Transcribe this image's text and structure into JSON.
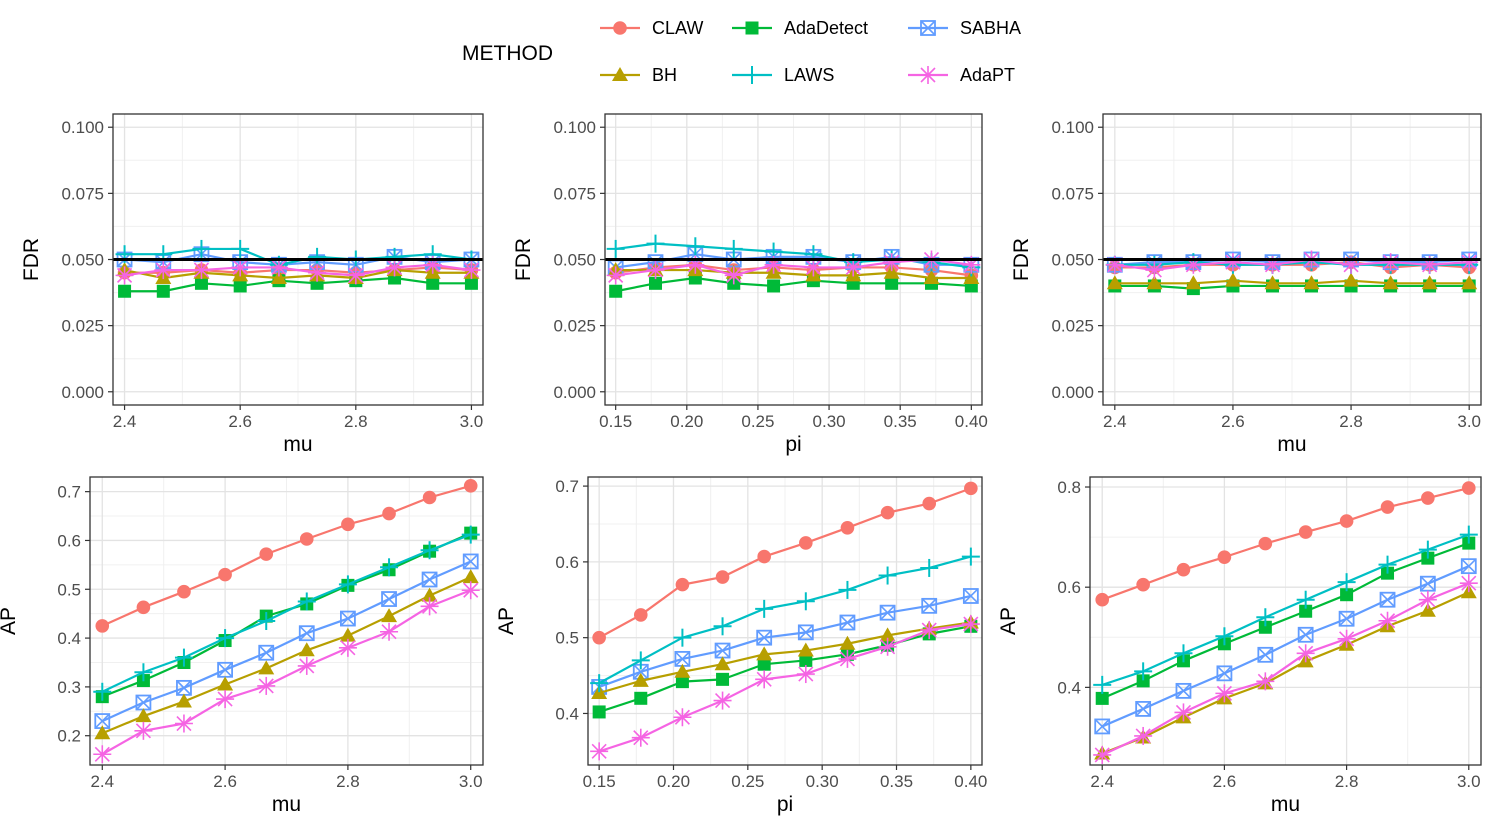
{
  "legend": {
    "title": "METHOD",
    "placement": "top",
    "entries": [
      {
        "name": "CLAW",
        "color": "#F8766D",
        "shape": "circle"
      },
      {
        "name": "AdaDetect",
        "color": "#00BA38",
        "shape": "square"
      },
      {
        "name": "SABHA",
        "color": "#619CFF",
        "shape": "boxx"
      },
      {
        "name": "BH",
        "color": "#B79F00",
        "shape": "triangle"
      },
      {
        "name": "LAWS",
        "color": "#00BFC4",
        "shape": "plus"
      },
      {
        "name": "AdaPT",
        "color": "#F564E3",
        "shape": "asterisk"
      }
    ]
  },
  "chart_data": [
    {
      "type": "line",
      "panel": "top-left",
      "xlabel": "mu",
      "ylabel": "FDR",
      "xlim": [
        2.38,
        3.02
      ],
      "ylim": [
        -0.005,
        0.105
      ],
      "xticks": [
        "2.4",
        "2.6",
        "2.8",
        "3.0"
      ],
      "yticks": [
        "0.000",
        "0.025",
        "0.050",
        "0.075",
        "0.100"
      ],
      "hline": 0.05,
      "x": [
        2.4,
        2.467,
        2.533,
        2.6,
        2.667,
        2.733,
        2.8,
        2.867,
        2.933,
        3.0
      ],
      "series": [
        {
          "name": "CLAW",
          "values": [
            0.045,
            0.045,
            0.046,
            0.045,
            0.046,
            0.046,
            0.045,
            0.046,
            0.047,
            0.046
          ]
        },
        {
          "name": "AdaDetect",
          "values": [
            0.038,
            0.038,
            0.041,
            0.04,
            0.042,
            0.041,
            0.042,
            0.043,
            0.041,
            0.041
          ]
        },
        {
          "name": "SABHA",
          "values": [
            0.05,
            0.049,
            0.052,
            0.049,
            0.048,
            0.049,
            0.048,
            0.051,
            0.049,
            0.05
          ]
        },
        {
          "name": "BH",
          "values": [
            0.046,
            0.043,
            0.045,
            0.044,
            0.043,
            0.044,
            0.043,
            0.046,
            0.045,
            0.045
          ]
        },
        {
          "name": "LAWS",
          "values": [
            0.052,
            0.052,
            0.054,
            0.054,
            0.048,
            0.051,
            0.05,
            0.051,
            0.052,
            0.05
          ]
        },
        {
          "name": "AdaPT",
          "values": [
            0.044,
            0.046,
            0.046,
            0.047,
            0.047,
            0.045,
            0.044,
            0.047,
            0.048,
            0.046
          ]
        }
      ]
    },
    {
      "type": "line",
      "panel": "top-middle",
      "xlabel": "pi",
      "ylabel": "FDR",
      "xlim": [
        0.1425,
        0.4075
      ],
      "ylim": [
        -0.005,
        0.105
      ],
      "xticks": [
        "0.15",
        "0.20",
        "0.25",
        "0.30",
        "0.35",
        "0.40"
      ],
      "yticks": [
        "0.000",
        "0.025",
        "0.050",
        "0.075",
        "0.100"
      ],
      "hline": 0.05,
      "x": [
        0.15,
        0.178,
        0.206,
        0.233,
        0.261,
        0.289,
        0.317,
        0.344,
        0.372,
        0.4
      ],
      "series": [
        {
          "name": "CLAW",
          "values": [
            0.045,
            0.047,
            0.048,
            0.046,
            0.047,
            0.046,
            0.047,
            0.047,
            0.046,
            0.044
          ]
        },
        {
          "name": "AdaDetect",
          "values": [
            0.038,
            0.041,
            0.043,
            0.041,
            0.04,
            0.042,
            0.041,
            0.041,
            0.041,
            0.04
          ]
        },
        {
          "name": "SABHA",
          "values": [
            0.047,
            0.049,
            0.052,
            0.05,
            0.051,
            0.051,
            0.049,
            0.051,
            0.048,
            0.048
          ]
        },
        {
          "name": "BH",
          "values": [
            0.046,
            0.046,
            0.046,
            0.045,
            0.045,
            0.044,
            0.044,
            0.045,
            0.043,
            0.043
          ]
        },
        {
          "name": "LAWS",
          "values": [
            0.054,
            0.056,
            0.055,
            0.054,
            0.053,
            0.052,
            0.049,
            0.05,
            0.049,
            0.047
          ]
        },
        {
          "name": "AdaPT",
          "values": [
            0.044,
            0.046,
            0.048,
            0.044,
            0.048,
            0.047,
            0.047,
            0.049,
            0.05,
            0.048
          ]
        }
      ]
    },
    {
      "type": "line",
      "panel": "top-right",
      "xlabel": "mu",
      "ylabel": "FDR",
      "xlim": [
        2.38,
        3.02
      ],
      "ylim": [
        -0.005,
        0.105
      ],
      "xticks": [
        "2.4",
        "2.6",
        "2.8",
        "3.0"
      ],
      "yticks": [
        "0.000",
        "0.025",
        "0.050",
        "0.075",
        "0.100"
      ],
      "hline": 0.05,
      "x": [
        2.4,
        2.467,
        2.533,
        2.6,
        2.667,
        2.733,
        2.8,
        2.867,
        2.933,
        3.0
      ],
      "series": [
        {
          "name": "CLAW",
          "values": [
            0.047,
            0.047,
            0.048,
            0.048,
            0.048,
            0.048,
            0.049,
            0.047,
            0.048,
            0.047
          ]
        },
        {
          "name": "AdaDetect",
          "values": [
            0.04,
            0.04,
            0.039,
            0.04,
            0.04,
            0.04,
            0.04,
            0.04,
            0.04,
            0.04
          ]
        },
        {
          "name": "SABHA",
          "values": [
            0.048,
            0.049,
            0.049,
            0.05,
            0.049,
            0.05,
            0.05,
            0.049,
            0.049,
            0.05
          ]
        },
        {
          "name": "BH",
          "values": [
            0.041,
            0.041,
            0.041,
            0.042,
            0.041,
            0.041,
            0.042,
            0.041,
            0.041,
            0.041
          ]
        },
        {
          "name": "LAWS",
          "values": [
            0.048,
            0.048,
            0.049,
            0.048,
            0.048,
            0.049,
            0.048,
            0.048,
            0.048,
            0.048
          ]
        },
        {
          "name": "AdaPT",
          "values": [
            0.048,
            0.046,
            0.048,
            0.049,
            0.048,
            0.05,
            0.048,
            0.049,
            0.048,
            0.049
          ]
        }
      ]
    },
    {
      "type": "line",
      "panel": "bottom-left",
      "xlabel": "mu",
      "ylabel": "AP",
      "xlim": [
        2.38,
        3.02
      ],
      "ylim": [
        0.14,
        0.73
      ],
      "xticks": [
        "2.4",
        "2.6",
        "2.8",
        "3.0"
      ],
      "yticks": [
        "0.2",
        "0.3",
        "0.4",
        "0.5",
        "0.6",
        "0.7"
      ],
      "x": [
        2.4,
        2.467,
        2.533,
        2.6,
        2.667,
        2.733,
        2.8,
        2.867,
        2.933,
        3.0
      ],
      "series": [
        {
          "name": "CLAW",
          "values": [
            0.425,
            0.463,
            0.495,
            0.53,
            0.572,
            0.603,
            0.633,
            0.655,
            0.688,
            0.712
          ]
        },
        {
          "name": "AdaDetect",
          "values": [
            0.28,
            0.313,
            0.35,
            0.395,
            0.445,
            0.47,
            0.508,
            0.54,
            0.578,
            0.615
          ]
        },
        {
          "name": "SABHA",
          "values": [
            0.23,
            0.268,
            0.298,
            0.335,
            0.37,
            0.41,
            0.44,
            0.48,
            0.52,
            0.557
          ]
        },
        {
          "name": "BH",
          "values": [
            0.205,
            0.24,
            0.27,
            0.305,
            0.338,
            0.375,
            0.405,
            0.445,
            0.487,
            0.525
          ]
        },
        {
          "name": "LAWS",
          "values": [
            0.29,
            0.33,
            0.36,
            0.4,
            0.435,
            0.475,
            0.51,
            0.545,
            0.58,
            0.612
          ]
        },
        {
          "name": "AdaPT",
          "values": [
            0.162,
            0.21,
            0.225,
            0.275,
            0.302,
            0.343,
            0.38,
            0.413,
            0.465,
            0.498
          ]
        }
      ]
    },
    {
      "type": "line",
      "panel": "bottom-middle",
      "xlabel": "pi",
      "ylabel": "AP",
      "xlim": [
        0.1425,
        0.4075
      ],
      "ylim": [
        0.332,
        0.712
      ],
      "xticks": [
        "0.15",
        "0.20",
        "0.25",
        "0.30",
        "0.35",
        "0.40"
      ],
      "yticks": [
        "0.4",
        "0.5",
        "0.6",
        "0.7"
      ],
      "x": [
        0.15,
        0.178,
        0.206,
        0.233,
        0.261,
        0.289,
        0.317,
        0.344,
        0.372,
        0.4
      ],
      "series": [
        {
          "name": "CLAW",
          "values": [
            0.5,
            0.53,
            0.57,
            0.58,
            0.607,
            0.625,
            0.645,
            0.665,
            0.677,
            0.697
          ]
        },
        {
          "name": "AdaDetect",
          "values": [
            0.402,
            0.42,
            0.442,
            0.445,
            0.465,
            0.47,
            0.478,
            0.49,
            0.505,
            0.515
          ]
        },
        {
          "name": "SABHA",
          "values": [
            0.435,
            0.455,
            0.472,
            0.483,
            0.5,
            0.507,
            0.52,
            0.533,
            0.542,
            0.555
          ]
        },
        {
          "name": "BH",
          "values": [
            0.427,
            0.443,
            0.455,
            0.465,
            0.478,
            0.483,
            0.492,
            0.503,
            0.512,
            0.52
          ]
        },
        {
          "name": "LAWS",
          "values": [
            0.44,
            0.47,
            0.5,
            0.515,
            0.538,
            0.548,
            0.563,
            0.582,
            0.592,
            0.607
          ]
        },
        {
          "name": "AdaPT",
          "values": [
            0.35,
            0.368,
            0.395,
            0.417,
            0.445,
            0.452,
            0.472,
            0.488,
            0.51,
            0.518
          ]
        }
      ]
    },
    {
      "type": "line",
      "panel": "bottom-right",
      "xlabel": "mu",
      "ylabel": "AP",
      "xlim": [
        2.38,
        3.02
      ],
      "ylim": [
        0.245,
        0.82
      ],
      "xticks": [
        "2.4",
        "2.6",
        "2.8",
        "3.0"
      ],
      "yticks": [
        "0.4",
        "0.6",
        "0.8"
      ],
      "x": [
        2.4,
        2.467,
        2.533,
        2.6,
        2.667,
        2.733,
        2.8,
        2.867,
        2.933,
        3.0
      ],
      "series": [
        {
          "name": "CLAW",
          "values": [
            0.575,
            0.605,
            0.635,
            0.66,
            0.687,
            0.71,
            0.732,
            0.76,
            0.778,
            0.798
          ]
        },
        {
          "name": "AdaDetect",
          "values": [
            0.378,
            0.413,
            0.453,
            0.487,
            0.52,
            0.552,
            0.585,
            0.628,
            0.658,
            0.688
          ]
        },
        {
          "name": "SABHA",
          "values": [
            0.322,
            0.357,
            0.393,
            0.428,
            0.465,
            0.505,
            0.537,
            0.575,
            0.607,
            0.642
          ]
        },
        {
          "name": "BH",
          "values": [
            0.268,
            0.3,
            0.34,
            0.378,
            0.408,
            0.452,
            0.485,
            0.522,
            0.553,
            0.59
          ]
        },
        {
          "name": "LAWS",
          "values": [
            0.405,
            0.432,
            0.468,
            0.502,
            0.54,
            0.575,
            0.61,
            0.645,
            0.675,
            0.705
          ]
        },
        {
          "name": "AdaPT",
          "values": [
            0.265,
            0.303,
            0.35,
            0.388,
            0.412,
            0.468,
            0.497,
            0.533,
            0.575,
            0.608
          ]
        }
      ]
    }
  ]
}
